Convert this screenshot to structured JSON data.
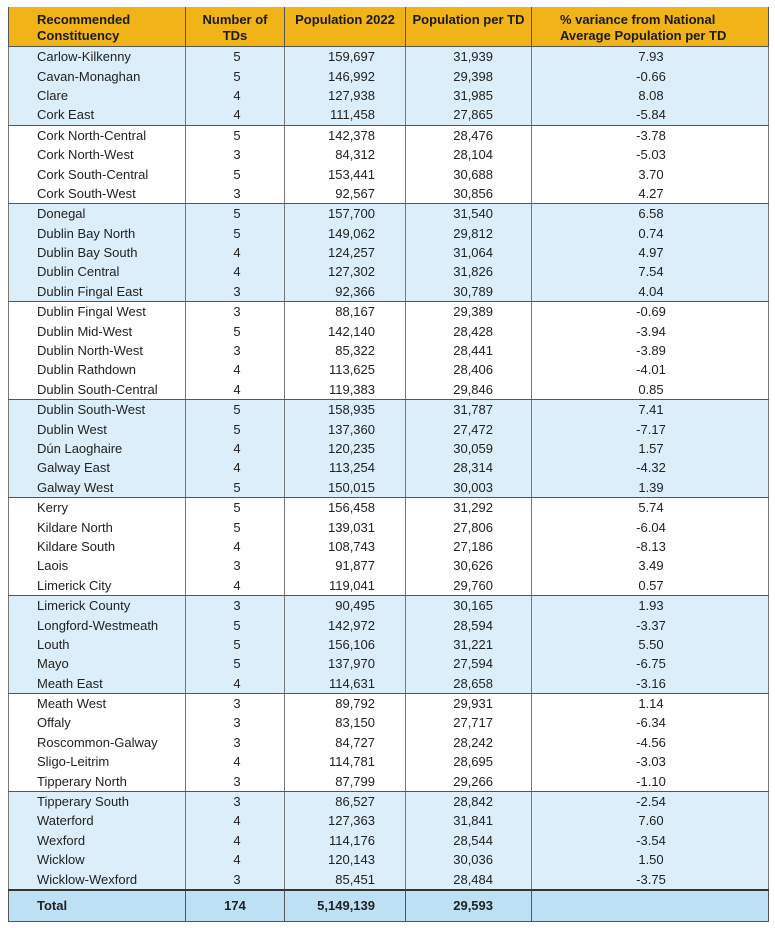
{
  "header": {
    "constituency": "Recommended Constituency",
    "tds": "Number of TDs",
    "population": "Population 2022",
    "per_td": "Population per TD",
    "variance": "% variance from National Average Population per TD"
  },
  "groups": [
    {
      "shade": "blue",
      "rows": [
        [
          "Carlow-Kilkenny",
          "5",
          "159,697",
          "31,939",
          "7.93"
        ],
        [
          "Cavan-Monaghan",
          "5",
          "146,992",
          "29,398",
          "-0.66"
        ],
        [
          "Clare",
          "4",
          "127,938",
          "31,985",
          "8.08"
        ],
        [
          "Cork East",
          "4",
          "111,458",
          "27,865",
          "-5.84"
        ]
      ]
    },
    {
      "shade": "white",
      "rows": [
        [
          "Cork North-Central",
          "5",
          "142,378",
          "28,476",
          "-3.78"
        ],
        [
          "Cork North-West",
          "3",
          "84,312",
          "28,104",
          "-5.03"
        ],
        [
          "Cork South-Central",
          "5",
          "153,441",
          "30,688",
          "3.70"
        ],
        [
          "Cork South-West",
          "3",
          "92,567",
          "30,856",
          "4.27"
        ]
      ]
    },
    {
      "shade": "blue",
      "rows": [
        [
          "Donegal",
          "5",
          "157,700",
          "31,540",
          "6.58"
        ],
        [
          "Dublin Bay North",
          "5",
          "149,062",
          "29,812",
          "0.74"
        ],
        [
          "Dublin Bay South",
          "4",
          "124,257",
          "31,064",
          "4.97"
        ],
        [
          "Dublin Central",
          "4",
          "127,302",
          "31,826",
          "7.54"
        ],
        [
          "Dublin Fingal East",
          "3",
          "92,366",
          "30,789",
          "4.04"
        ]
      ]
    },
    {
      "shade": "white",
      "rows": [
        [
          "Dublin Fingal West",
          "3",
          "88,167",
          "29,389",
          "-0.69"
        ],
        [
          "Dublin Mid-West",
          "5",
          "142,140",
          "28,428",
          "-3.94"
        ],
        [
          "Dublin North-West",
          "3",
          "85,322",
          "28,441",
          "-3.89"
        ],
        [
          "Dublin Rathdown",
          "4",
          "113,625",
          "28,406",
          "-4.01"
        ],
        [
          "Dublin South-Central",
          "4",
          "119,383",
          "29,846",
          "0.85"
        ]
      ]
    },
    {
      "shade": "blue",
      "rows": [
        [
          "Dublin South-West",
          "5",
          "158,935",
          "31,787",
          "7.41"
        ],
        [
          "Dublin West",
          "5",
          "137,360",
          "27,472",
          "-7.17"
        ],
        [
          "Dún Laoghaire",
          "4",
          "120,235",
          "30,059",
          "1.57"
        ],
        [
          "Galway East",
          "4",
          "113,254",
          "28,314",
          "-4.32"
        ],
        [
          "Galway West",
          "5",
          "150,015",
          "30,003",
          "1.39"
        ]
      ]
    },
    {
      "shade": "white",
      "rows": [
        [
          "Kerry",
          "5",
          "156,458",
          "31,292",
          "5.74"
        ],
        [
          "Kildare North",
          "5",
          "139,031",
          "27,806",
          "-6.04"
        ],
        [
          "Kildare South",
          "4",
          "108,743",
          "27,186",
          "-8.13"
        ],
        [
          "Laois",
          "3",
          "91,877",
          "30,626",
          "3.49"
        ],
        [
          "Limerick City",
          "4",
          "119,041",
          "29,760",
          "0.57"
        ]
      ]
    },
    {
      "shade": "blue",
      "rows": [
        [
          "Limerick County",
          "3",
          "90,495",
          "30,165",
          "1.93"
        ],
        [
          "Longford-Westmeath",
          "5",
          "142,972",
          "28,594",
          "-3.37"
        ],
        [
          "Louth",
          "5",
          "156,106",
          "31,221",
          "5.50"
        ],
        [
          "Mayo",
          "5",
          "137,970",
          "27,594",
          "-6.75"
        ],
        [
          "Meath East",
          "4",
          "114,631",
          "28,658",
          "-3.16"
        ]
      ]
    },
    {
      "shade": "white",
      "rows": [
        [
          "Meath West",
          "3",
          "89,792",
          "29,931",
          "1.14"
        ],
        [
          "Offaly",
          "3",
          "83,150",
          "27,717",
          "-6.34"
        ],
        [
          "Roscommon-Galway",
          "3",
          "84,727",
          "28,242",
          "-4.56"
        ],
        [
          "Sligo-Leitrim",
          "4",
          "114,781",
          "28,695",
          "-3.03"
        ],
        [
          "Tipperary North",
          "3",
          "87,799",
          "29,266",
          "-1.10"
        ]
      ]
    },
    {
      "shade": "blue",
      "rows": [
        [
          "Tipperary South",
          "3",
          "86,527",
          "28,842",
          "-2.54"
        ],
        [
          "Waterford",
          "4",
          "127,363",
          "31,841",
          "7.60"
        ],
        [
          "Wexford",
          "4",
          "114,176",
          "28,544",
          "-3.54"
        ],
        [
          "Wicklow",
          "4",
          "120,143",
          "30,036",
          "1.50"
        ],
        [
          "Wicklow-Wexford",
          "3",
          "85,451",
          "28,484",
          "-3.75"
        ]
      ]
    }
  ],
  "total": {
    "label": "Total",
    "tds": "174",
    "population": "5,149,139",
    "per_td": "29,593",
    "variance": ""
  },
  "colors": {
    "header": "#f0b318",
    "band_blue": "#dbeefa",
    "total_row": "#bde0f5"
  }
}
